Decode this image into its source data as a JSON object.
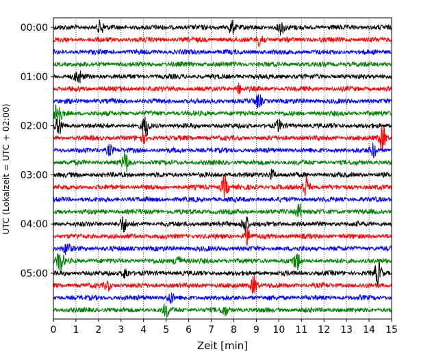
{
  "chart_data": {
    "type": "line",
    "xlabel": "Zeit  [min]",
    "ylabel": "UTC (Lokalzeit = UTC + 02:00)",
    "xlim": [
      0,
      15
    ],
    "x_ticks": [
      0,
      1,
      2,
      3,
      4,
      5,
      6,
      7,
      8,
      9,
      10,
      11,
      12,
      13,
      14,
      15
    ],
    "x_tick_labels": [
      "0",
      "1",
      "2",
      "3",
      "4",
      "5",
      "6",
      "7",
      "8",
      "9",
      "10",
      "11",
      "12",
      "13",
      "14",
      "15"
    ],
    "y_tick_labels": [
      "00:00",
      "01:00",
      "02:00",
      "03:00",
      "04:00",
      "05:00"
    ],
    "y_tick_rows": [
      0,
      4,
      8,
      12,
      16,
      20
    ],
    "grid_x": true,
    "trace_minutes": 15,
    "colors": [
      "#000000",
      "#ff0000",
      "#0000ff",
      "#008000"
    ],
    "series": [
      {
        "start": "00:00",
        "color": "#000000",
        "events": [
          {
            "t": 2.1,
            "a": 9
          },
          {
            "t": 7.9,
            "a": 10
          },
          {
            "t": 10.1,
            "a": 10
          }
        ]
      },
      {
        "start": "00:15",
        "color": "#ff0000",
        "events": [
          {
            "t": 9.2,
            "a": 12
          }
        ]
      },
      {
        "start": "00:30",
        "color": "#0000ff",
        "events": []
      },
      {
        "start": "00:45",
        "color": "#008000",
        "events": []
      },
      {
        "start": "01:00",
        "color": "#000000",
        "events": [
          {
            "t": 1.1,
            "a": 10
          }
        ]
      },
      {
        "start": "01:15",
        "color": "#ff0000",
        "events": [
          {
            "t": 8.2,
            "a": 7
          }
        ]
      },
      {
        "start": "01:30",
        "color": "#0000ff",
        "events": [
          {
            "t": 9.1,
            "a": 9
          }
        ]
      },
      {
        "start": "01:45",
        "color": "#008000",
        "events": [
          {
            "t": 0.2,
            "a": 18
          }
        ]
      },
      {
        "start": "02:00",
        "color": "#000000",
        "events": [
          {
            "t": 0.25,
            "a": 12
          },
          {
            "t": 4.1,
            "a": 14
          },
          {
            "t": 10.0,
            "a": 7
          }
        ]
      },
      {
        "start": "02:15",
        "color": "#ff0000",
        "events": [
          {
            "t": 4.0,
            "a": 6
          },
          {
            "t": 14.6,
            "a": 17
          }
        ]
      },
      {
        "start": "02:30",
        "color": "#0000ff",
        "events": [
          {
            "t": 2.5,
            "a": 8
          },
          {
            "t": 14.2,
            "a": 10
          }
        ]
      },
      {
        "start": "02:45",
        "color": "#008000",
        "events": [
          {
            "t": 3.2,
            "a": 13
          }
        ]
      },
      {
        "start": "03:00",
        "color": "#000000",
        "events": [
          {
            "t": 9.7,
            "a": 7
          }
        ]
      },
      {
        "start": "03:15",
        "color": "#ff0000",
        "events": [
          {
            "t": 7.6,
            "a": 16
          },
          {
            "t": 11.2,
            "a": 16
          }
        ]
      },
      {
        "start": "03:30",
        "color": "#0000ff",
        "events": []
      },
      {
        "start": "03:45",
        "color": "#008000",
        "events": [
          {
            "t": 10.9,
            "a": 11
          }
        ]
      },
      {
        "start": "04:00",
        "color": "#000000",
        "events": [
          {
            "t": 3.1,
            "a": 11
          },
          {
            "t": 8.5,
            "a": 14
          }
        ]
      },
      {
        "start": "04:15",
        "color": "#ff0000",
        "events": [
          {
            "t": 8.6,
            "a": 12
          }
        ]
      },
      {
        "start": "04:30",
        "color": "#0000ff",
        "events": [
          {
            "t": 0.6,
            "a": 8
          }
        ]
      },
      {
        "start": "04:45",
        "color": "#008000",
        "events": [
          {
            "t": 0.3,
            "a": 15
          },
          {
            "t": 5.5,
            "a": 10
          },
          {
            "t": 10.8,
            "a": 13
          }
        ]
      },
      {
        "start": "05:00",
        "color": "#000000",
        "events": [
          {
            "t": 14.4,
            "a": 16
          },
          {
            "t": 3.2,
            "a": 8
          }
        ]
      },
      {
        "start": "05:15",
        "color": "#ff0000",
        "events": [
          {
            "t": 8.9,
            "a": 14
          },
          {
            "t": 2.4,
            "a": 7
          }
        ]
      },
      {
        "start": "05:30",
        "color": "#0000ff",
        "events": [
          {
            "t": 5.2,
            "a": 7
          }
        ]
      },
      {
        "start": "05:45",
        "color": "#008000",
        "events": [
          {
            "t": 5.0,
            "a": 9
          },
          {
            "t": 7.6,
            "a": 7
          }
        ]
      }
    ]
  }
}
